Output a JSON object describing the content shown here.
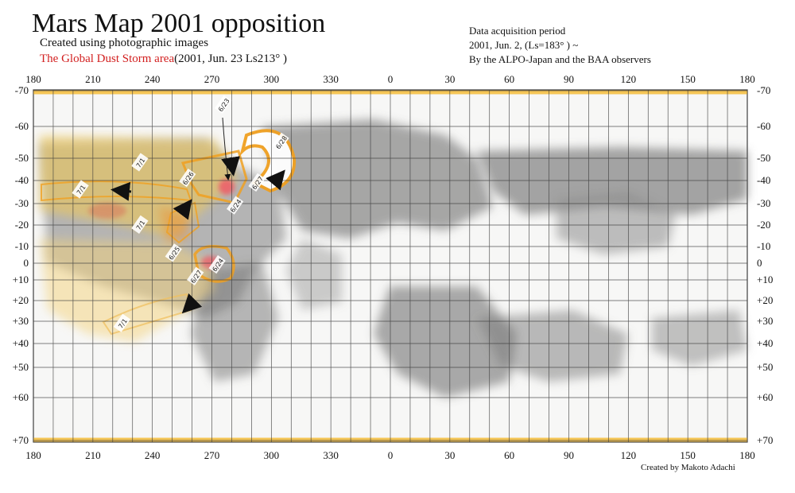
{
  "header": {
    "title": "Mars Map 2001 opposition",
    "subtitle": "Created using photographic images",
    "dust_label": "The Global Dust Storm area",
    "dust_date": "(2001, Jun. 23  Ls213°  )"
  },
  "info": {
    "line1": "Data acquisition period",
    "line2": "2001, Jun. 2,  (Ls=183°  )  ~",
    "line3": "By the ALPO-Japan and the BAA observers"
  },
  "credit": "Created by Makoto Adachi",
  "axes": {
    "longitude_labels": [
      "180",
      "210",
      "240",
      "270",
      "300",
      "330",
      "0",
      "30",
      "60",
      "90",
      "120",
      "150",
      "180"
    ],
    "latitude_left": [
      "-70",
      "-60",
      "-50",
      "-40",
      "-30",
      "-20",
      "-10",
      "0",
      "+10",
      "+20",
      "+30",
      "+40",
      "+50",
      "+60",
      "+70"
    ],
    "latitude_right": [
      "-70",
      "-60",
      "-50",
      "-40",
      "-30",
      "-20",
      "-10",
      "0",
      "+10",
      "+20",
      "+30",
      "+40",
      "+50",
      "+60",
      "+70"
    ]
  },
  "dust_dates": [
    {
      "label": "6/23",
      "lon": 276,
      "lat": -66
    },
    {
      "label": "6/28",
      "lon": 305,
      "lat": -55
    },
    {
      "label": "6/26",
      "lon": 258,
      "lat": -41
    },
    {
      "label": "6/27",
      "lon": 293,
      "lat": -39
    },
    {
      "label": "6/24",
      "lon": 282,
      "lat": -29
    },
    {
      "label": "7/1",
      "lon": 234,
      "lat": -48
    },
    {
      "label": "7/1",
      "lon": 204,
      "lat": -36
    },
    {
      "label": "7/1",
      "lon": 234,
      "lat": -20
    },
    {
      "label": "6/25",
      "lon": 251,
      "lat": -6
    },
    {
      "label": "6/24",
      "lon": 273,
      "lat": 1
    },
    {
      "label": "6/27",
      "lon": 262,
      "lat": 8
    },
    {
      "label": "7/1",
      "lon": 225,
      "lat": 31
    }
  ],
  "colors": {
    "dust_yellow": "#f4c84a",
    "dust_orange": "#f0a020",
    "dust_core": "#e85a5a",
    "terrain_gray": "#8a8a8a",
    "title_red": "#d21f1f"
  }
}
